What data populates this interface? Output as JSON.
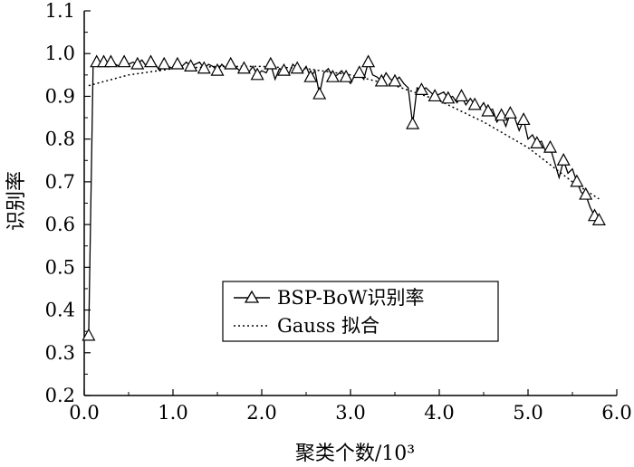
{
  "chart_data": {
    "type": "line",
    "xlabel": "聚类个数/10³",
    "ylabel": "识别率",
    "xlim": [
      0.0,
      6.0
    ],
    "ylim": [
      0.2,
      1.1
    ],
    "xticks": [
      "0.0",
      "1.0",
      "2.0",
      "3.0",
      "4.0",
      "5.0",
      "6.0"
    ],
    "yticks": [
      "0.2",
      "0.3",
      "0.4",
      "0.5",
      "0.6",
      "0.7",
      "0.8",
      "0.9",
      "1.0",
      "1.1"
    ],
    "grid": false,
    "legend_position": "center-right",
    "series": [
      {
        "name": "BSP-BoW识别率",
        "style": "solid line with open triangle markers",
        "color": "#000000",
        "x": [
          0.05,
          0.1,
          0.14,
          0.18,
          0.22,
          0.26,
          0.3,
          0.35,
          0.4,
          0.45,
          0.5,
          0.55,
          0.6,
          0.65,
          0.7,
          0.75,
          0.8,
          0.85,
          0.9,
          0.95,
          1.0,
          1.05,
          1.1,
          1.15,
          1.2,
          1.25,
          1.3,
          1.35,
          1.4,
          1.45,
          1.5,
          1.55,
          1.6,
          1.65,
          1.7,
          1.75,
          1.8,
          1.85,
          1.9,
          1.95,
          2.0,
          2.05,
          2.1,
          2.15,
          2.2,
          2.25,
          2.3,
          2.35,
          2.4,
          2.45,
          2.5,
          2.55,
          2.6,
          2.65,
          2.7,
          2.75,
          2.8,
          2.85,
          2.9,
          2.95,
          3.0,
          3.05,
          3.1,
          3.15,
          3.2,
          3.25,
          3.3,
          3.35,
          3.4,
          3.45,
          3.5,
          3.55,
          3.6,
          3.65,
          3.7,
          3.75,
          3.8,
          3.85,
          3.9,
          3.95,
          4.0,
          4.05,
          4.1,
          4.15,
          4.2,
          4.25,
          4.3,
          4.35,
          4.4,
          4.45,
          4.5,
          4.55,
          4.6,
          4.65,
          4.7,
          4.75,
          4.8,
          4.85,
          4.9,
          4.95,
          5.0,
          5.05,
          5.1,
          5.15,
          5.2,
          5.25,
          5.3,
          5.35,
          5.4,
          5.45,
          5.5,
          5.55,
          5.6,
          5.65,
          5.7,
          5.75,
          5.8
        ],
        "y": [
          0.34,
          0.97,
          0.98,
          0.97,
          0.98,
          0.97,
          0.98,
          0.975,
          0.97,
          0.98,
          0.975,
          0.98,
          0.975,
          0.985,
          0.97,
          0.98,
          0.975,
          0.96,
          0.975,
          0.97,
          0.965,
          0.975,
          0.97,
          0.98,
          0.97,
          0.975,
          0.98,
          0.965,
          0.975,
          0.97,
          0.96,
          0.975,
          0.965,
          0.975,
          0.97,
          0.96,
          0.965,
          0.955,
          0.97,
          0.95,
          0.96,
          0.955,
          0.975,
          0.94,
          0.965,
          0.96,
          0.95,
          0.975,
          0.965,
          0.955,
          0.97,
          0.945,
          0.96,
          0.905,
          0.955,
          0.965,
          0.945,
          0.95,
          0.96,
          0.945,
          0.93,
          0.95,
          0.955,
          0.94,
          0.98,
          0.95,
          0.945,
          0.935,
          0.955,
          0.94,
          0.935,
          0.945,
          0.93,
          0.92,
          0.835,
          0.92,
          0.915,
          0.92,
          0.91,
          0.9,
          0.905,
          0.91,
          0.895,
          0.9,
          0.885,
          0.9,
          0.88,
          0.895,
          0.88,
          0.87,
          0.885,
          0.865,
          0.87,
          0.84,
          0.855,
          0.83,
          0.86,
          0.85,
          0.82,
          0.845,
          0.8,
          0.81,
          0.79,
          0.795,
          0.77,
          0.78,
          0.745,
          0.71,
          0.75,
          0.72,
          0.73,
          0.7,
          0.675,
          0.67,
          0.64,
          0.62,
          0.61
        ]
      },
      {
        "name": "Gauss 拟合",
        "style": "dotted line",
        "color": "#000000",
        "x": [
          0.05,
          0.5,
          1.0,
          1.5,
          2.0,
          2.5,
          3.0,
          3.5,
          4.0,
          4.5,
          5.0,
          5.5,
          5.8
        ],
        "y": [
          0.925,
          0.95,
          0.965,
          0.97,
          0.97,
          0.965,
          0.95,
          0.925,
          0.89,
          0.84,
          0.78,
          0.7,
          0.66
        ]
      }
    ]
  }
}
